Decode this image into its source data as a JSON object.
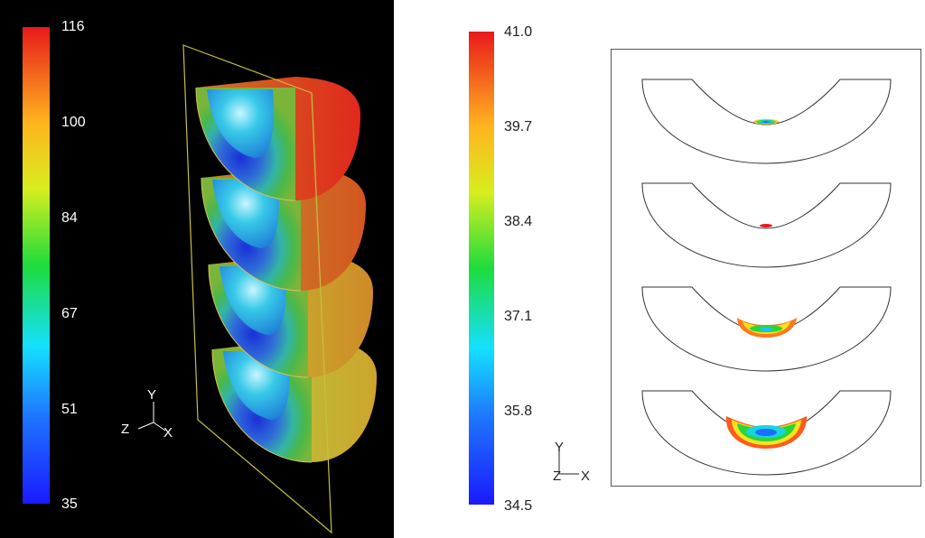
{
  "left_view": {
    "colorbar": {
      "ticks": [
        "116",
        "100",
        "84",
        "67",
        "51",
        "35"
      ],
      "max_color": "#e8191b",
      "min_color": "#1a1aff"
    },
    "axes": {
      "y": "Y",
      "z": "Z",
      "x": "X"
    }
  },
  "right_view": {
    "colorbar": {
      "ticks": [
        "41.0",
        "39.7",
        "38.4",
        "37.1",
        "35.8",
        "34.5"
      ],
      "max_color": "#e8191b",
      "min_color": "#1a1aff"
    },
    "axes": {
      "y": "Y",
      "z": "Z",
      "x": "X"
    },
    "sections": [
      {
        "level": "small"
      },
      {
        "level": "tiny"
      },
      {
        "level": "medium"
      },
      {
        "level": "large"
      }
    ]
  }
}
